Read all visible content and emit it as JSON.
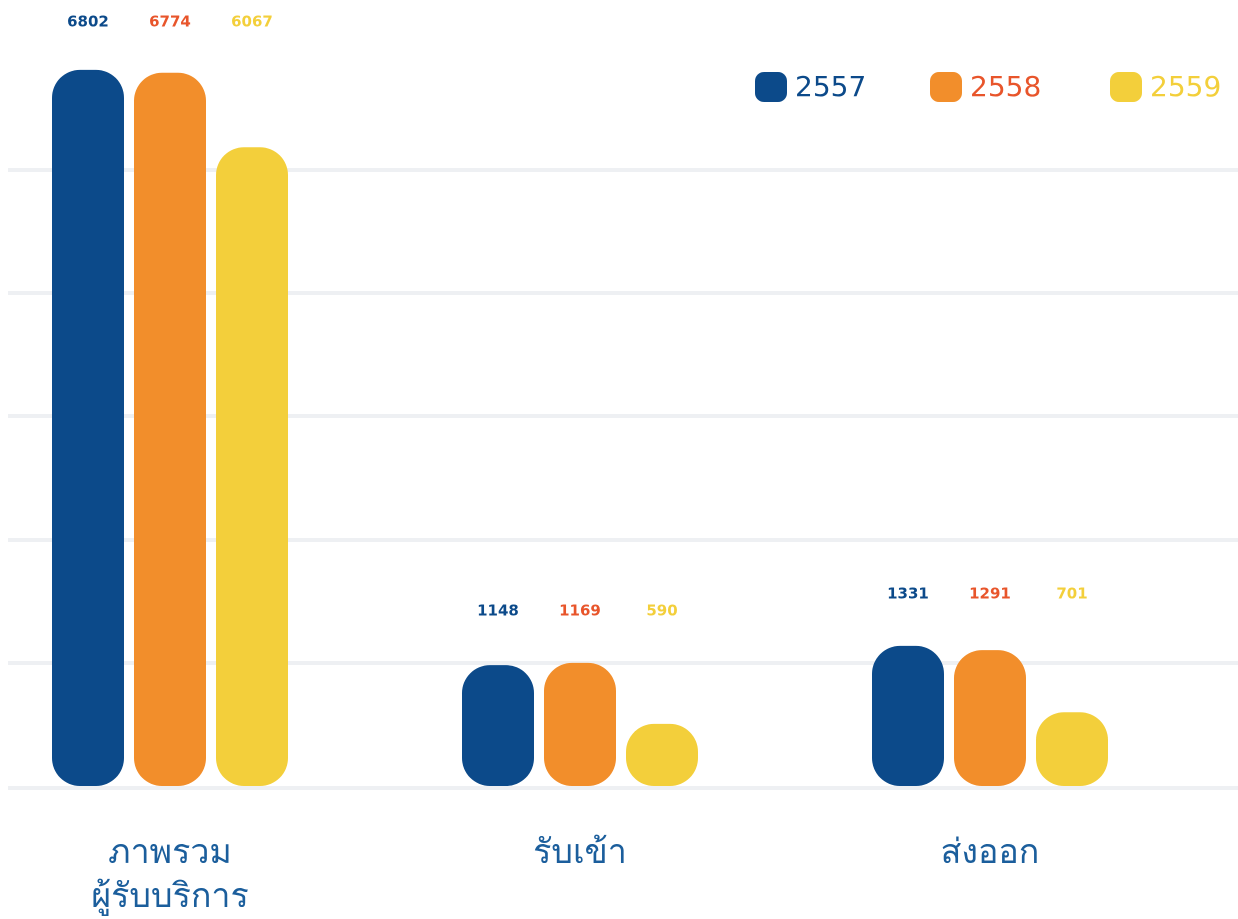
{
  "chart_data": {
    "type": "bar",
    "categories": [
      "ภาพรวม\nผู้รับบริการ",
      "รับเข้า",
      "ส่งออก"
    ],
    "series": [
      {
        "name": "2557",
        "color": "#0c4a8a",
        "label_color": "#0c4a8a",
        "values": [
          6802,
          1148,
          1331
        ]
      },
      {
        "name": "2558",
        "color": "#f28e2b",
        "label_color": "#e8552b",
        "values": [
          6774,
          1169,
          1291
        ]
      },
      {
        "name": "2559",
        "color": "#f3cf3b",
        "label_color": "#f3cf3b",
        "values": [
          6067,
          590,
          701
        ]
      }
    ],
    "ylim": [
      0,
      7000
    ],
    "legend": "top-right"
  }
}
